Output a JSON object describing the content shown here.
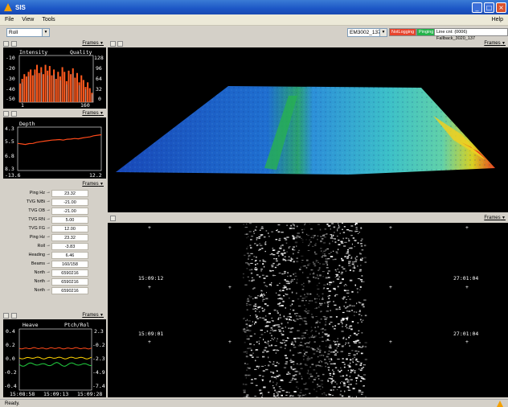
{
  "window": {
    "title": "SIS",
    "help_menu": "Help"
  },
  "menu": [
    "File",
    "View",
    "Tools"
  ],
  "toolbar": {
    "left_combo": "Roll",
    "sounder_combo": "EM3002_137",
    "not_logging": "NotLogging",
    "pinging": "Pinging",
    "line_info": "Line cnt: (0006) Fallback_3020_137"
  },
  "frames_label": "Frames",
  "intensity": {
    "title_left": "Intensity",
    "title_right": "Quality",
    "y_left": [
      "-10",
      "-20",
      "-30",
      "-40",
      "-50"
    ],
    "y_right": [
      "128",
      "96",
      "64",
      "32",
      "0"
    ],
    "x_left": "1",
    "x_right": "160",
    "bar_color": "#ff5a1e",
    "quality_color": "#9aa0a8",
    "values": [
      -34,
      -30,
      -26,
      -28,
      -24,
      -22,
      -27,
      -22,
      -18,
      -25,
      -20,
      -26,
      -18,
      -23,
      -19,
      -27,
      -22,
      -30,
      -24,
      -28,
      -20,
      -24,
      -32,
      -23,
      -26,
      -21,
      -29,
      -25,
      -33,
      -27,
      -31,
      -37,
      -33,
      -38,
      -42
    ]
  },
  "depth": {
    "title": "Depth",
    "y_ticks": [
      "4.3",
      "5.5",
      "6.8",
      "8.3"
    ],
    "x_left": "-13.6",
    "x_right": "12.2",
    "line_color": "#ff4a1a",
    "values": [
      5.8,
      5.85,
      5.9,
      5.82,
      5.8,
      5.7,
      5.65,
      5.6,
      5.55,
      5.5,
      5.48,
      5.45,
      5.5,
      5.42,
      5.4,
      5.35,
      5.38,
      5.3,
      5.25,
      5.2,
      5.1,
      5.05,
      5.0
    ]
  },
  "ping_info": [
    {
      "label": "Ping Hz",
      "value": "23.32"
    },
    {
      "label": "TVG N/Bi",
      "value": "-21.00"
    },
    {
      "label": "TVG OB",
      "value": "-21.00"
    },
    {
      "label": "TVG RN",
      "value": "5.00"
    },
    {
      "label": "TVG FG",
      "value": "12.00"
    },
    {
      "label": "Ping Hz",
      "value": "23.32"
    },
    {
      "label": "Roll",
      "value": "-3.83"
    },
    {
      "label": "Heading",
      "value": "6.46"
    },
    {
      "label": "Beams",
      "value": "160/158"
    },
    {
      "label": "North",
      "value": "6590216"
    },
    {
      "label": "North",
      "value": "6590216"
    },
    {
      "label": "North",
      "value": "6590216"
    }
  ],
  "attitude": {
    "title_left": "Heave",
    "title_right": "Ptch/Rol",
    "y_left": [
      "0.4",
      "0.2",
      "0.0",
      "-0.2",
      "-0.4"
    ],
    "y_right": [
      "2.3",
      "-0.2",
      "-2.3",
      "-4.9",
      "-7.4"
    ],
    "x_ticks": [
      "15:08:58",
      "15:09:13",
      "15:09:28"
    ],
    "heave_color": "#ff4a1a",
    "pitch_color": "#ffd400",
    "roll_color": "#22d040"
  },
  "sidescan": {
    "times_left": [
      "15:09:12",
      "15:09:01"
    ],
    "times_right": [
      "27:01:04",
      "27:01:04"
    ]
  },
  "status": "Ready."
}
